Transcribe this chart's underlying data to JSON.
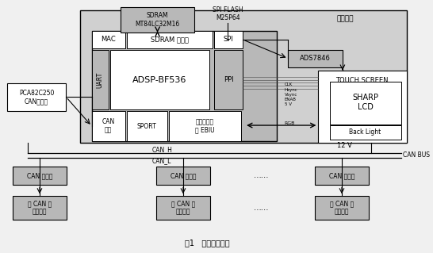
{
  "title": "图1   总体结构框图",
  "bg_color": "#e8e8e8",
  "main_controller_label": "主控制器",
  "sdram_label": "SDRAM\nMT84LC32M16",
  "spi_flash_label": "SPI FLASH\nM25P64",
  "ads_label": "ADS7846",
  "touch_screen_label": "TOUCH SCREEN",
  "sharp_lcd_label": "SHARP\nLCD",
  "back_light_label": "Back Light",
  "v12_label": "12 V",
  "mac_label": "MAC",
  "sdram_ctrl_label": "SDRAM 控制器",
  "spi_label": "SPI",
  "uart_label": "UART",
  "adsp_label": "ADSP-BF536",
  "ppi_label": "PPI",
  "can_port_label": "CAN\n接口",
  "sport_label": "SPORT",
  "ext_bus_label": "外部总线接\n口 EBIU",
  "pca_label": "PCA82C250\nCAN收发器",
  "can_h_label": "CAN_H",
  "can_l_label": "CAN_L",
  "can_bus_label": "CAN BUS",
  "rgb_label": "RGB",
  "clk_labels": "CLK\nHsync\nVsync\nENAB\n5 V",
  "can_recv1": "CAN 收发器",
  "can_recv2": "CAN 收发器",
  "can_recv3": "CAN 收发器",
  "sub_ctrl1": "带 CAN 的\n分控制器",
  "sub_ctrl2": "带 CAN 的\n分控制器",
  "sub_ctrl3": "带 CAN 的\n分控制器",
  "dots1": "……",
  "dots2": "……",
  "box_light_gray": "#c8c8c8",
  "box_mid_gray": "#b8b8b8",
  "box_white": "#ffffff",
  "box_dark_gray": "#909090",
  "outer_gray": "#d0d0d0",
  "text_color": "#000000",
  "line_color": "#000000"
}
